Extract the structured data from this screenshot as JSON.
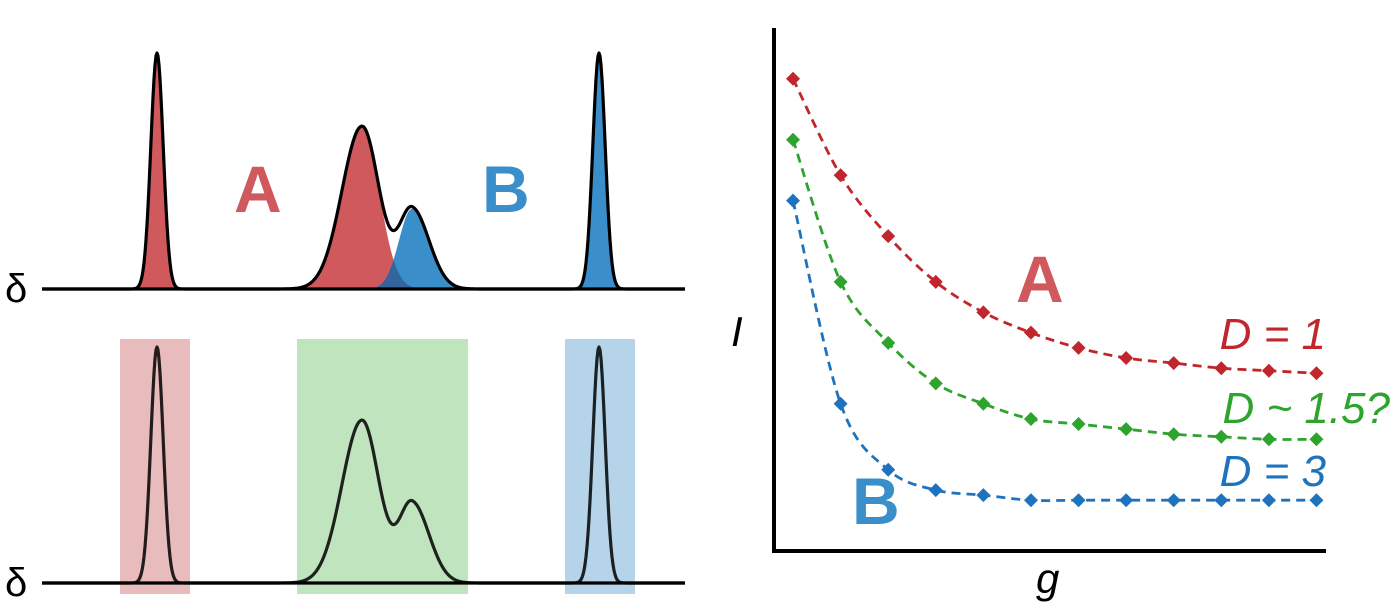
{
  "spectrum_top": {
    "axis_label": "δ",
    "label_a": "A",
    "label_b": "B"
  },
  "spectrum_bottom": {
    "axis_label": "δ"
  },
  "decay_plot": {
    "ylabel": "I",
    "xlabel": "g",
    "label_a": "A",
    "label_b": "B"
  },
  "colors": {
    "red": "#d0595d",
    "red_dark": "#c0262c",
    "blue": "#3a8fcb",
    "blue_dark": "#1f73bd",
    "green": "#2ea32e",
    "overlap": "#33649e",
    "box_red": "#e8bcbd",
    "box_green": "#bfe4be",
    "box_blue": "#b5d4ea",
    "line": "#000000"
  },
  "chart_data": {
    "type": "scatter",
    "title": "",
    "xlabel": "g",
    "ylabel": "I",
    "x": [
      1,
      2,
      3,
      4,
      5,
      6,
      7,
      8,
      9,
      10,
      11,
      12
    ],
    "xlim": [
      0.6,
      12.2
    ],
    "ylim": [
      0,
      1.03
    ],
    "series": [
      {
        "name": "D = 1",
        "color": "#c0262c",
        "values": [
          0.93,
          0.74,
          0.62,
          0.53,
          0.47,
          0.43,
          0.4,
          0.38,
          0.37,
          0.36,
          0.355,
          0.35
        ]
      },
      {
        "name": "D ~ 1.5?",
        "color": "#2ea32e",
        "values": [
          0.81,
          0.53,
          0.41,
          0.33,
          0.29,
          0.26,
          0.25,
          0.24,
          0.23,
          0.225,
          0.22,
          0.22
        ]
      },
      {
        "name": "D = 3",
        "color": "#1f73bd",
        "values": [
          0.69,
          0.29,
          0.16,
          0.12,
          0.11,
          0.1,
          0.1,
          0.1,
          0.1,
          0.1,
          0.1,
          0.1
        ]
      }
    ],
    "grid": false,
    "legend": "none"
  }
}
